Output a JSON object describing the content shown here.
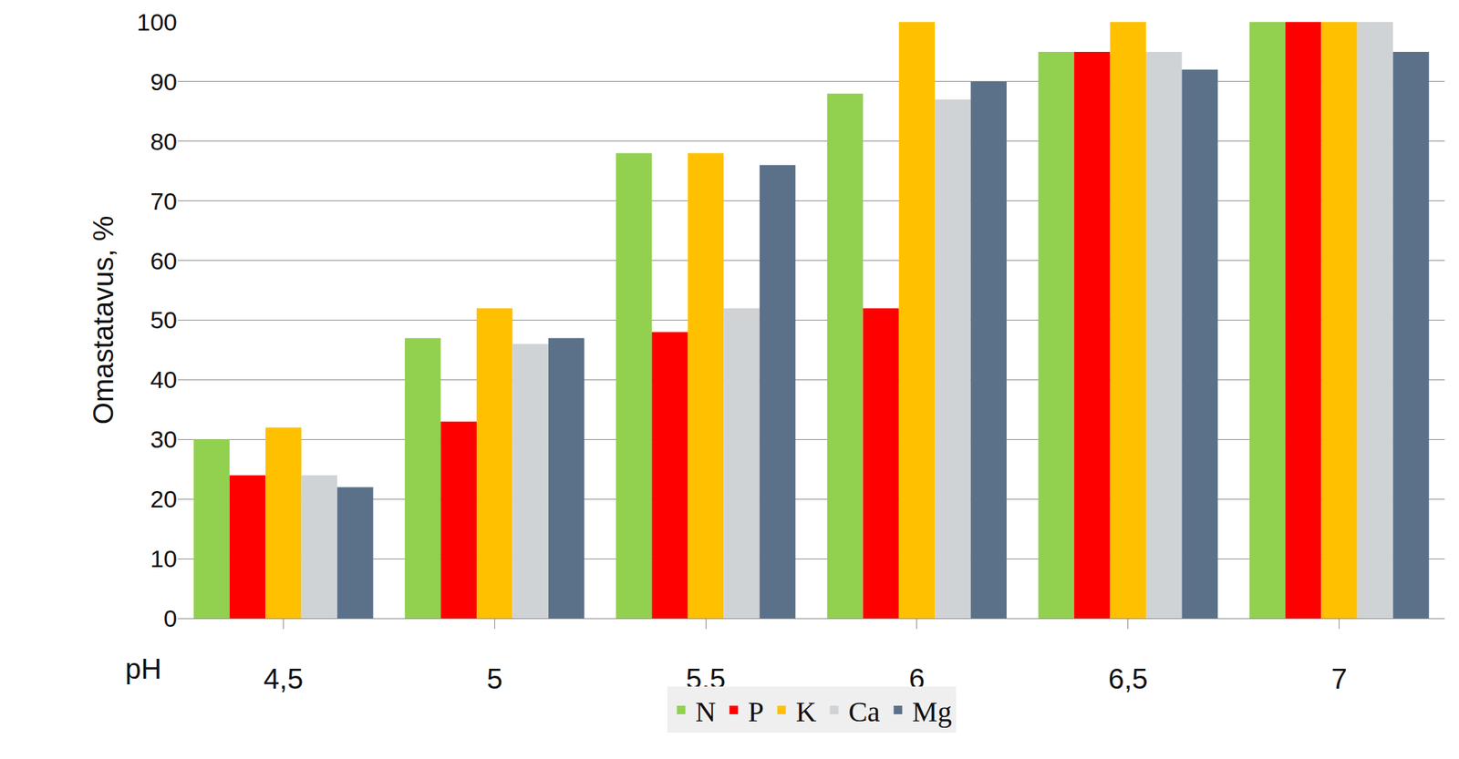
{
  "chart_data": {
    "type": "bar",
    "y_label": "Omastatavus, %",
    "x_label": "pH",
    "categories": [
      "4,5",
      "5",
      "5,5",
      "6",
      "6,5",
      "7"
    ],
    "series": [
      {
        "name": "N",
        "color": "#92d050",
        "values": [
          30,
          47,
          78,
          88,
          95,
          100
        ]
      },
      {
        "name": "P",
        "color": "#ff0000",
        "values": [
          24,
          33,
          48,
          52,
          95,
          100
        ]
      },
      {
        "name": "K",
        "color": "#ffc000",
        "values": [
          32,
          52,
          78,
          100,
          100,
          100
        ]
      },
      {
        "name": "Ca",
        "color": "#d0d3d6",
        "values": [
          24,
          46,
          52,
          87,
          95,
          100
        ]
      },
      {
        "name": "Mg",
        "color": "#5a7189",
        "values": [
          22,
          47,
          76,
          90,
          92,
          95
        ]
      }
    ],
    "ylim": [
      0,
      100
    ],
    "yticks": [
      0,
      10,
      20,
      30,
      40,
      50,
      60,
      70,
      80,
      90,
      100
    ],
    "grid": true,
    "legend": "bottom"
  }
}
